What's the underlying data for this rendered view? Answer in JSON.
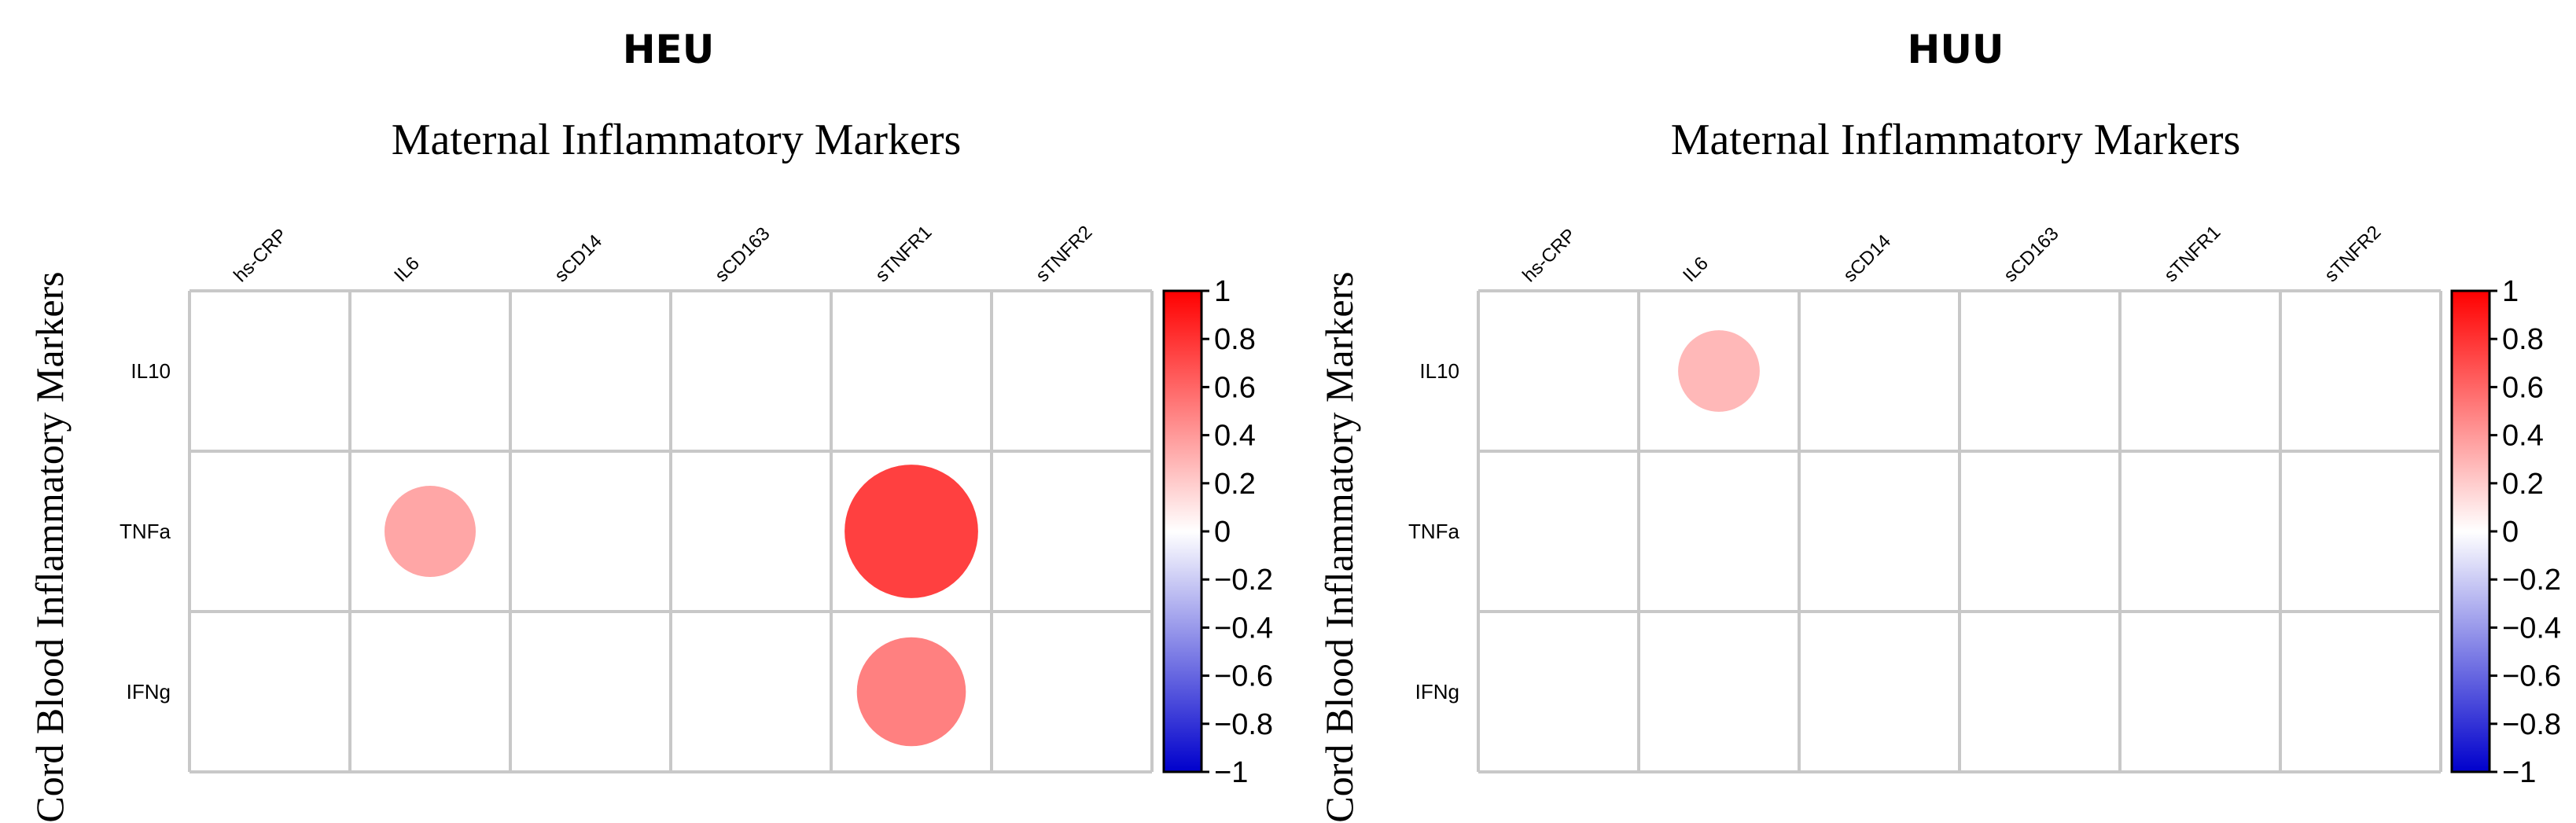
{
  "chart_data": [
    {
      "type": "heatmap",
      "title": "HEU",
      "subtitle": "Maternal Inflammatory Markers",
      "xlabel": "Maternal Inflammatory Markers",
      "ylabel": "Cord Blood Inflammatory Markers",
      "columns": [
        "hs-CRP",
        "IL6",
        "sCD14",
        "sCD163",
        "sTNFR1",
        "sTNFR2"
      ],
      "rows": [
        "IL10",
        "TNFa",
        "IFNg"
      ],
      "values": [
        [
          null,
          null,
          null,
          null,
          null,
          null
        ],
        [
          null,
          0.35,
          null,
          null,
          0.75,
          null
        ],
        [
          null,
          null,
          null,
          null,
          0.5,
          null
        ]
      ],
      "colorbar": {
        "range": [
          -1,
          1
        ],
        "ticks": [
          "1",
          "0.8",
          "0.6",
          "0.4",
          "0.2",
          "0",
          "−0.2",
          "−0.4",
          "−0.6",
          "−0.8",
          "−1"
        ]
      }
    },
    {
      "type": "heatmap",
      "title": "HUU",
      "subtitle": "Maternal Inflammatory Markers",
      "xlabel": "Maternal Inflammatory Markers",
      "ylabel": "Cord Blood Inflammatory Markers",
      "columns": [
        "hs-CRP",
        "IL6",
        "sCD14",
        "sCD163",
        "sTNFR1",
        "sTNFR2"
      ],
      "rows": [
        "IL10",
        "TNFa",
        "IFNg"
      ],
      "values": [
        [
          null,
          0.28,
          null,
          null,
          null,
          null
        ],
        [
          null,
          null,
          null,
          null,
          null,
          null
        ],
        [
          null,
          null,
          null,
          null,
          null,
          null
        ]
      ],
      "colorbar": {
        "range": [
          -1,
          1
        ],
        "ticks": [
          "1",
          "0.8",
          "0.6",
          "0.4",
          "0.2",
          "0",
          "−0.2",
          "−0.4",
          "−0.6",
          "−0.8",
          "−1"
        ]
      }
    }
  ],
  "colors": {
    "positive_max": "#ff0000",
    "neutral": "#ffffff",
    "negative_max": "#0000cc",
    "grid": "#c8c8c8"
  }
}
